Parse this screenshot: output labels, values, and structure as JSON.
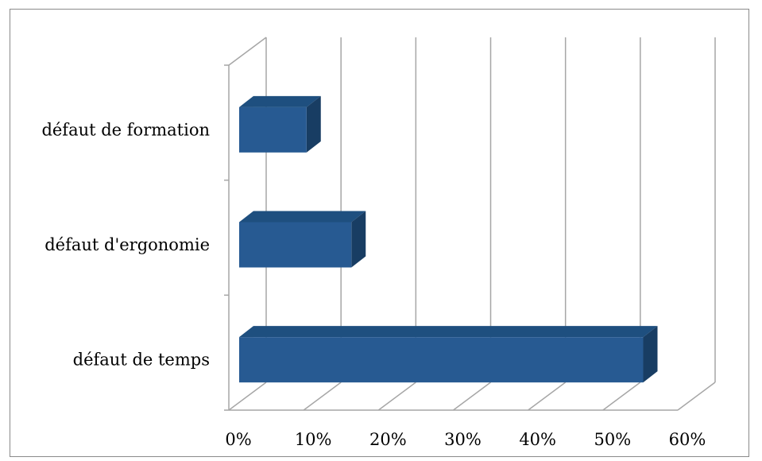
{
  "chart_data": {
    "type": "bar",
    "orientation": "horizontal",
    "style": "3d",
    "categories": [
      "défaut de formation",
      "défaut d'ergonomie",
      "défaut de temps"
    ],
    "values": [
      0.09,
      0.15,
      0.54
    ],
    "xlim": [
      0,
      0.6
    ],
    "x_ticks": [
      0,
      0.1,
      0.2,
      0.3,
      0.4,
      0.5,
      0.6
    ],
    "x_tick_labels": [
      "0%",
      "10%",
      "20%",
      "30%",
      "40%",
      "50%",
      "60%"
    ],
    "grid": "vertical",
    "legend": "none",
    "title": "",
    "xlabel": "",
    "ylabel": "",
    "colors": {
      "bar_front": "#275A92",
      "bar_top": "#1E4F7F",
      "bar_side": "#183D63",
      "grid": "#A6A6A6"
    }
  }
}
